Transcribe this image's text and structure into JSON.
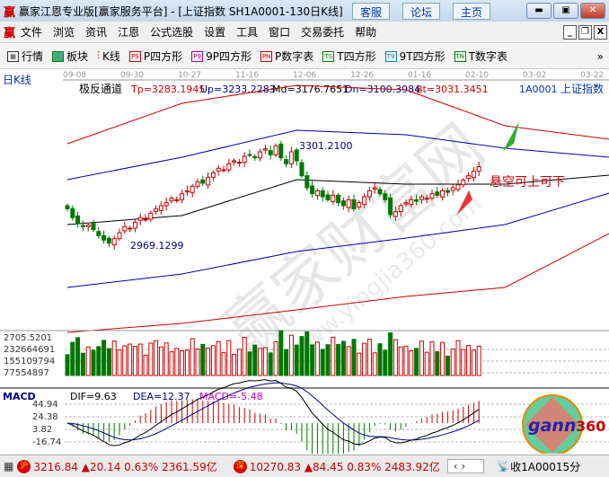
{
  "window": {
    "logo": "赢",
    "title": "赢家江恩专业版[赢家服务平台] - [上证指数  SH1A0001-130日K线]",
    "buttons": [
      "客服",
      "论坛",
      "主页"
    ],
    "controls": [
      "minimize-icon",
      "restore-icon",
      "close-icon"
    ]
  },
  "menu": {
    "logo": "赢",
    "items": [
      "文件",
      "浏览",
      "资讯",
      "江恩",
      "公式选股",
      "设置",
      "工具",
      "窗口",
      "交易委托",
      "帮助"
    ]
  },
  "toolbar": {
    "items": [
      {
        "icon": "grid-icon",
        "label": "行情"
      },
      {
        "icon": "blocks-icon",
        "label": "板块"
      },
      {
        "icon": "candle-icon",
        "label": "K线"
      },
      {
        "icon": "PS",
        "label": "P四方形",
        "color": "#cc0000"
      },
      {
        "icon": "P9",
        "label": "9P四方形",
        "color": "#aa00aa"
      },
      {
        "icon": "PN",
        "label": "P数字表",
        "color": "#cc0000"
      },
      {
        "icon": "TS",
        "label": "T四方形",
        "color": "#008800"
      },
      {
        "icon": "T9",
        "label": "9T四方形",
        "color": "#0088aa"
      },
      {
        "icon": "TN",
        "label": "T数字表",
        "color": "#008800"
      }
    ],
    "more": "»"
  },
  "chart": {
    "period": "日K线",
    "dates": [
      "09-08",
      "09-30",
      "10-27",
      "11-16",
      "12-06",
      "12-26",
      "01-16",
      "02-10",
      "03-02",
      "03-22"
    ],
    "indicator": "极反通道",
    "tp": "Tp=3283.1945",
    "up": "Up=3233.2283",
    "md": "Md=3176.7651",
    "dn": "Dn=3100.3984",
    "bt": "Bt=3031.3451",
    "code": "1A0001",
    "name": "上证指数",
    "high_label": "3301.2100",
    "low_label": "2969.1299",
    "annotation": "悬空可上可下",
    "watermark": "赢家财富网",
    "watermark_url": "www.yingjia360.com",
    "vol_axis": [
      "2705.5201",
      "232664691",
      "155109794",
      "77554897"
    ],
    "macd": {
      "label": "MACD",
      "dif": "DIF=9.63",
      "dea": "DEA=12.37",
      "macd": "MACD=-5.48",
      "axis": [
        "44.94",
        "24.38",
        "3.82",
        "-16.74"
      ]
    },
    "colors": {
      "up": "#cc0000",
      "down": "#007700",
      "upper_band": "#cc0000",
      "mid_band": "#0000aa",
      "middle": "#000000"
    }
  },
  "chart_data": {
    "type": "candlestick",
    "closes": [
      3090,
      3060,
      3040,
      3030,
      3035,
      3020,
      3000,
      2985,
      2975,
      2990,
      3010,
      3030,
      3025,
      3045,
      3060,
      3055,
      3075,
      3090,
      3100,
      3110,
      3125,
      3120,
      3140,
      3150,
      3165,
      3180,
      3175,
      3195,
      3210,
      3225,
      3220,
      3240,
      3250,
      3245,
      3265,
      3270,
      3260,
      3280,
      3290,
      3270,
      3300,
      3260,
      3240,
      3280,
      3250,
      3200,
      3160,
      3140,
      3150,
      3130,
      3120,
      3135,
      3110,
      3100,
      3120,
      3090,
      3110,
      3130,
      3150,
      3160,
      3140,
      3120,
      3070,
      3080,
      3100,
      3110,
      3120,
      3115,
      3130,
      3125,
      3140,
      3135,
      3150,
      3145,
      3160,
      3170,
      3185,
      3200,
      3215,
      3230
    ],
    "bands": {
      "days": [
        0,
        22,
        44,
        65,
        84,
        104
      ],
      "tp": [
        3307,
        3442,
        3502,
        3487,
        3367,
        3322
      ],
      "up": [
        3187,
        3262,
        3352,
        3337,
        3292,
        3262
      ],
      "md": [
        3037,
        3067,
        3187,
        3172,
        3172,
        3202
      ],
      "dn": [
        2827,
        2872,
        2947,
        2992,
        3037,
        3142
      ],
      "bt": [
        2677,
        2707,
        2752,
        2797,
        2827,
        3007
      ]
    }
  },
  "status": {
    "sh_label": "沪",
    "sh": "3216.84 ▲20.14 0.63% 2361.59亿",
    "sz_label": "深",
    "sz": "10270.83 ▲84.45 0.83% 2483.92亿",
    "recv": "收1A00015分"
  }
}
